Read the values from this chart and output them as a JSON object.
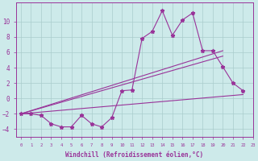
{
  "xlabel": "Windchill (Refroidissement éolien,°C)",
  "background_color": "#cdeaea",
  "grid_color": "#aacccc",
  "line_color": "#993399",
  "x": [
    0,
    1,
    2,
    3,
    4,
    5,
    6,
    7,
    8,
    9,
    10,
    11,
    12,
    13,
    14,
    15,
    16,
    17,
    18,
    19,
    20,
    21,
    22
  ],
  "curve1": [
    -2.0,
    -2.0,
    -2.2,
    -3.3,
    -3.7,
    -3.7,
    -2.2,
    -3.3,
    -3.7,
    -2.5,
    1.0,
    1.1,
    7.8,
    8.7,
    11.4,
    8.2,
    10.2,
    11.1,
    6.2,
    6.2,
    4.1,
    2.0,
    1.0
  ],
  "line1_x": [
    0,
    22
  ],
  "line1_y": [
    -2.0,
    0.5
  ],
  "line2_x": [
    0,
    20
  ],
  "line2_y": [
    -2.0,
    6.2
  ],
  "line3_x": [
    0,
    20
  ],
  "line3_y": [
    -2.0,
    5.5
  ],
  "ylim": [
    -5.0,
    12.5
  ],
  "xlim": [
    -0.5,
    23.0
  ],
  "yticks": [
    -4,
    -2,
    0,
    2,
    4,
    6,
    8,
    10
  ],
  "xticks": [
    0,
    1,
    2,
    3,
    4,
    5,
    6,
    7,
    8,
    9,
    10,
    11,
    12,
    13,
    14,
    15,
    16,
    17,
    18,
    19,
    20,
    21,
    22,
    23
  ]
}
